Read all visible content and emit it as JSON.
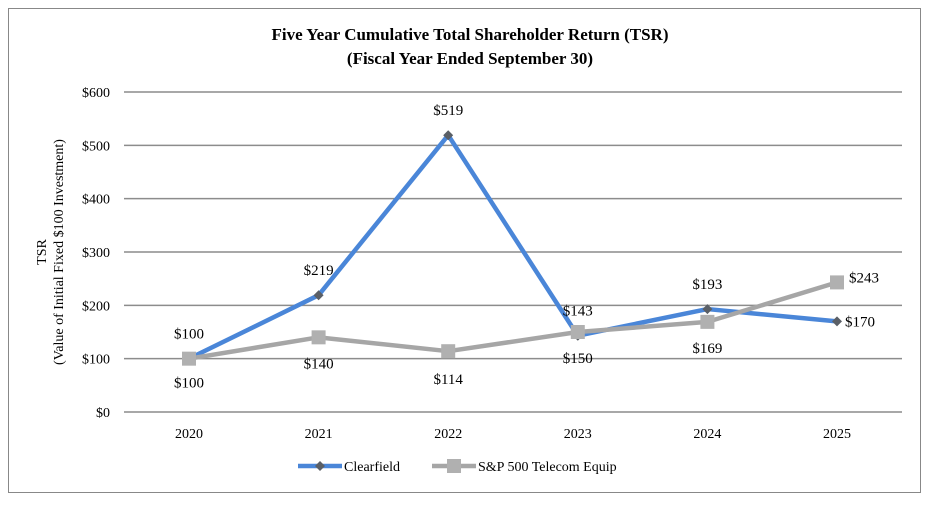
{
  "chart_data": {
    "type": "line",
    "title": "Five Year Cumulative Total Shareholder Return (TSR)",
    "subtitle": "(Fiscal Year Ended September 30)",
    "ylabel": "TSR",
    "ylabel2": "(Value of Initial Fixed $100 Investment)",
    "xlabel": "",
    "categories": [
      "2020",
      "2021",
      "2022",
      "2023",
      "2024",
      "2025"
    ],
    "ylim": [
      0,
      600
    ],
    "yticks": [
      "$0",
      "$100",
      "$200",
      "$300",
      "$400",
      "$500",
      "$600"
    ],
    "grid": true,
    "legend": "bottom",
    "series": [
      {
        "name": "Clearfield",
        "values": [
          100,
          219,
          519,
          143,
          193,
          170
        ],
        "labels": [
          "$100",
          "$219",
          "$519",
          "$143",
          "$193",
          "$170"
        ],
        "color": "#4a86d8",
        "marker": "diamond",
        "marker_color": "#5a5f66"
      },
      {
        "name": "S&P 500 Telecom Equip",
        "values": [
          100,
          140,
          114,
          150,
          169,
          243
        ],
        "labels": [
          "$100",
          "$140",
          "$114",
          "$150",
          "$169",
          "$243"
        ],
        "color": "#a6a6a6",
        "marker": "square",
        "marker_color": "#b0b0b0"
      }
    ]
  }
}
